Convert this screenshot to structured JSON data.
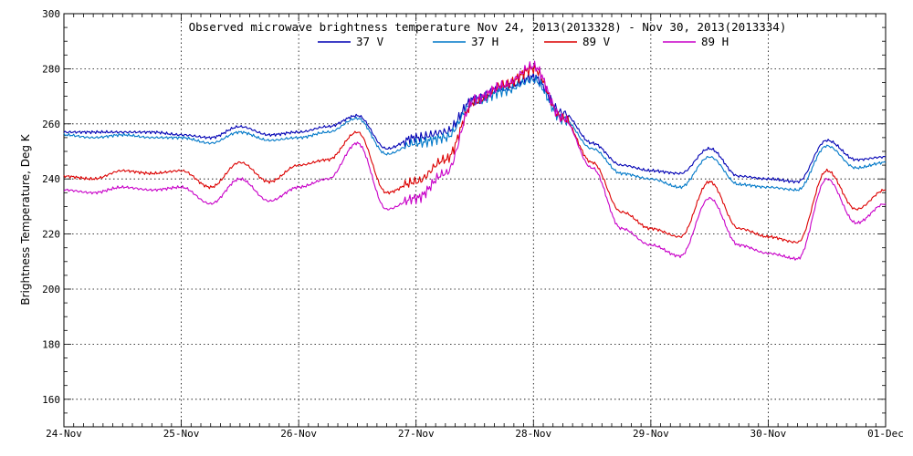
{
  "chart_data": {
    "type": "line",
    "title": "Observed microwave brightness temperature Nov 24, 2013(2013328) - Nov 30, 2013(2013334)",
    "ylabel": "Brightness Temperature, Deg K",
    "xlabel": "",
    "ylim": [
      150,
      300
    ],
    "xlim": [
      "24-Nov",
      "01-Dec"
    ],
    "x_tick_labels": [
      "24-Nov",
      "25-Nov",
      "26-Nov",
      "27-Nov",
      "28-Nov",
      "29-Nov",
      "30-Nov",
      "01-Dec"
    ],
    "y_ticks": [
      160,
      180,
      200,
      220,
      240,
      260,
      280,
      300
    ],
    "grid": true,
    "legend_position": "top-center",
    "x": [
      "24-Nov 00:00",
      "24-Nov 06:00",
      "24-Nov 12:00",
      "24-Nov 18:00",
      "25-Nov 00:00",
      "25-Nov 06:00",
      "25-Nov 12:00",
      "25-Nov 18:00",
      "26-Nov 00:00",
      "26-Nov 06:00",
      "26-Nov 12:00",
      "26-Nov 18:00",
      "27-Nov 00:00",
      "27-Nov 06:00",
      "27-Nov 12:00",
      "27-Nov 18:00",
      "28-Nov 00:00",
      "28-Nov 06:00",
      "28-Nov 12:00",
      "28-Nov 18:00",
      "29-Nov 00:00",
      "29-Nov 06:00",
      "29-Nov 12:00",
      "29-Nov 18:00",
      "30-Nov 00:00",
      "30-Nov 06:00",
      "30-Nov 12:00",
      "30-Nov 18:00",
      "01-Dec 00:00"
    ],
    "series": [
      {
        "name": "37 V",
        "color": "#0000b4",
        "values": [
          257,
          257,
          257,
          257,
          256,
          255,
          259,
          256,
          257,
          259,
          263,
          251,
          255,
          257,
          269,
          273,
          277,
          264,
          253,
          245,
          243,
          242,
          251,
          241,
          240,
          239,
          254,
          247,
          248
        ]
      },
      {
        "name": "37 H",
        "color": "#0078c8",
        "values": [
          256,
          255,
          256,
          255,
          255,
          253,
          257,
          254,
          255,
          257,
          262,
          249,
          253,
          255,
          268,
          272,
          276,
          262,
          251,
          242,
          240,
          237,
          248,
          238,
          237,
          236,
          252,
          244,
          246
        ]
      },
      {
        "name": "89 V",
        "color": "#dc0000",
        "values": [
          241,
          240,
          243,
          242,
          243,
          237,
          246,
          239,
          245,
          247,
          257,
          235,
          239,
          247,
          268,
          274,
          280,
          262,
          246,
          228,
          222,
          219,
          239,
          222,
          219,
          217,
          243,
          229,
          236
        ]
      },
      {
        "name": "89 H",
        "color": "#c800c8",
        "values": [
          236,
          235,
          237,
          236,
          237,
          231,
          240,
          232,
          237,
          240,
          253,
          229,
          233,
          242,
          269,
          274,
          281,
          262,
          244,
          222,
          216,
          212,
          233,
          216,
          213,
          211,
          240,
          224,
          231
        ]
      }
    ]
  }
}
